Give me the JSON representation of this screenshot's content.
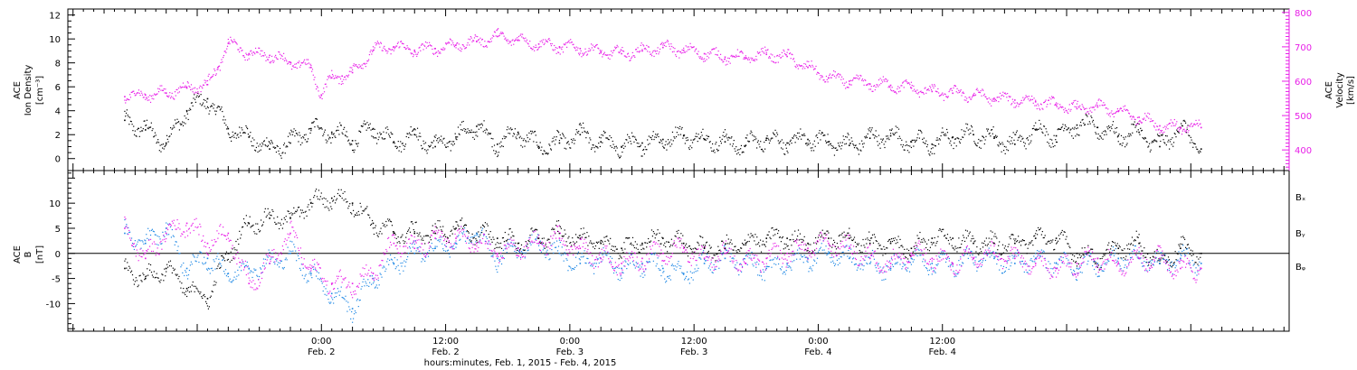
{
  "colors": {
    "density": "#000000",
    "velocity": "#e81ee8",
    "bx": "#000000",
    "by": "#1e88e5",
    "bz": "#e81ee8"
  },
  "chart_data": [
    {
      "type": "scatter",
      "panel": "top",
      "ylabel": [
        "ACE",
        "Ion Density",
        "[cm⁻³]"
      ],
      "ylabel_right": [
        "ACE",
        "Velocity",
        "[km/s]"
      ],
      "ylim": [
        -1,
        12.5
      ],
      "yticks": [
        0,
        2,
        4,
        6,
        8,
        10,
        12
      ],
      "ylim_right": [
        340,
        810
      ],
      "yticks_right": [
        400,
        500,
        600,
        700,
        800
      ],
      "series": [
        {
          "key": "density",
          "axis": "left",
          "x": [
            -19,
            -17,
            -15,
            -13,
            -11,
            -9,
            -7,
            -5,
            -3,
            -1,
            1,
            3,
            5,
            7,
            9,
            11,
            13,
            15,
            17,
            19,
            21,
            23,
            25,
            27,
            29,
            31,
            33,
            35,
            37,
            39,
            41,
            43,
            45,
            47,
            49,
            51,
            53,
            55,
            57,
            59,
            61,
            63,
            65,
            67,
            69,
            71,
            73,
            75,
            77,
            79,
            81,
            83,
            85
          ],
          "values": [
            3.2,
            2.4,
            1.3,
            4.0,
            5.0,
            2.5,
            1.8,
            0.8,
            1.3,
            2.5,
            2.2,
            1.5,
            2.5,
            1.4,
            2.0,
            1.0,
            1.8,
            2.7,
            1.2,
            2.2,
            1.0,
            1.3,
            2.0,
            1.4,
            1.0,
            1.3,
            1.6,
            1.9,
            1.6,
            1.4,
            1.1,
            1.7,
            1.3,
            1.6,
            1.4,
            1.1,
            1.7,
            1.9,
            1.4,
            1.2,
            1.8,
            2.0,
            1.7,
            1.2,
            2.4,
            1.9,
            2.8,
            2.6,
            1.9,
            2.2,
            1.0,
            2.6,
            0.8
          ]
        },
        {
          "key": "velocity",
          "axis": "right",
          "x": [
            -19,
            -17,
            -15,
            -13,
            -11,
            -10,
            -9,
            -7,
            -5,
            -3,
            -1,
            0,
            1,
            2,
            3,
            5,
            7,
            9,
            11,
            13,
            15,
            17,
            19,
            21,
            23,
            25,
            27,
            29,
            31,
            33,
            35,
            37,
            39,
            41,
            43,
            45,
            47,
            49,
            51,
            53,
            55,
            57,
            59,
            61,
            63,
            65,
            67,
            69,
            71,
            73,
            75,
            77,
            79,
            81,
            83,
            85
          ],
          "values": [
            555,
            560,
            565,
            580,
            590,
            640,
            710,
            680,
            675,
            655,
            640,
            560,
            610,
            615,
            625,
            690,
            700,
            690,
            695,
            705,
            715,
            730,
            720,
            708,
            700,
            695,
            685,
            680,
            688,
            698,
            690,
            680,
            670,
            668,
            678,
            672,
            640,
            610,
            600,
            592,
            588,
            580,
            570,
            565,
            560,
            550,
            545,
            540,
            530,
            520,
            525,
            512,
            495,
            470,
            465,
            465
          ]
        }
      ]
    },
    {
      "type": "scatter",
      "panel": "bottom",
      "ylabel": [
        "ACE",
        "B",
        "[nT]"
      ],
      "ylim": [
        -15.5,
        16.5
      ],
      "yticks": [
        -10,
        -5,
        0,
        5,
        10
      ],
      "zero_line": true,
      "legend": [
        "Bₓ",
        "Bᵧ",
        "Bᵩ"
      ],
      "series": [
        {
          "key": "bx",
          "x": [
            -19,
            -17,
            -15,
            -13,
            -11,
            -9,
            -7,
            -5,
            -3,
            -1,
            1,
            3,
            5,
            7,
            9,
            11,
            13,
            15,
            17,
            19,
            21,
            23,
            25,
            27,
            29,
            31,
            33,
            35,
            37,
            39,
            41,
            43,
            45,
            47,
            49,
            51,
            53,
            55,
            57,
            59,
            61,
            63,
            65,
            67,
            69,
            71,
            73,
            75,
            77,
            79,
            81,
            83,
            85
          ],
          "values": [
            -3,
            -5,
            -3,
            -7,
            -9,
            0,
            6,
            7,
            7,
            10,
            11,
            10,
            6,
            4,
            4,
            4,
            5,
            4,
            3,
            2,
            3,
            4,
            3,
            2,
            1,
            2,
            3,
            2,
            1,
            1,
            2,
            3,
            3,
            2,
            3,
            3,
            2,
            2,
            1,
            3,
            3,
            2,
            2,
            2,
            3,
            3,
            0,
            -1,
            1,
            2,
            -2,
            1,
            0
          ]
        },
        {
          "key": "by",
          "x": [
            -19,
            -17,
            -15,
            -13,
            -11,
            -9,
            -7,
            -5,
            -3,
            -1,
            1,
            3,
            5,
            7,
            9,
            11,
            13,
            15,
            17,
            19,
            21,
            23,
            25,
            27,
            29,
            31,
            33,
            35,
            37,
            39,
            41,
            43,
            45,
            47,
            49,
            51,
            53,
            55,
            57,
            59,
            61,
            63,
            65,
            67,
            69,
            71,
            73,
            75,
            77,
            79,
            81,
            83,
            85
          ],
          "values": [
            4,
            2,
            5,
            -3,
            -1,
            -4,
            -3,
            -2,
            0,
            -4,
            -8,
            -11,
            -5,
            -2,
            0,
            1,
            2,
            4,
            -1,
            1,
            2,
            0,
            -2,
            -1,
            -3,
            -2,
            -3,
            -4,
            -2,
            -1,
            -2,
            -3,
            -2,
            -1,
            0,
            -1,
            -2,
            -3,
            -1,
            -2,
            -2,
            -1,
            -1,
            -2,
            -1,
            -2,
            -3,
            -2,
            -1,
            -1,
            -2,
            -1,
            -2
          ]
        },
        {
          "key": "bz",
          "x": [
            -19,
            -17,
            -15,
            -13,
            -11,
            -9,
            -7,
            -5,
            -3,
            -1,
            1,
            3,
            5,
            7,
            9,
            11,
            13,
            15,
            17,
            19,
            21,
            23,
            25,
            27,
            29,
            31,
            33,
            35,
            37,
            39,
            41,
            43,
            45,
            47,
            49,
            51,
            53,
            55,
            57,
            59,
            61,
            63,
            65,
            67,
            69,
            71,
            73,
            75,
            77,
            79,
            81,
            83,
            85
          ],
          "values": [
            5,
            -1,
            4,
            6,
            2,
            4,
            -6,
            -2,
            4,
            -3,
            -6,
            -6,
            -4,
            2,
            1,
            3,
            3,
            2,
            0,
            1,
            2,
            3,
            1,
            -1,
            -2,
            -1,
            0,
            1,
            -1,
            0,
            -2,
            -1,
            0,
            1,
            2,
            1,
            -1,
            -2,
            0,
            -1,
            -2,
            -1,
            0,
            -1,
            -2,
            -3,
            -2,
            -1,
            -2,
            -1,
            -1,
            -3,
            -3
          ]
        }
      ]
    }
  ],
  "xaxis": {
    "xlim": [
      -24.5,
      93.5
    ],
    "major_ticks": [
      {
        "x": 0,
        "time": "0:00",
        "date": "Feb. 2"
      },
      {
        "x": 12,
        "time": "12:00",
        "date": "Feb. 2"
      },
      {
        "x": 24,
        "time": "0:00",
        "date": "Feb. 3"
      },
      {
        "x": 36,
        "time": "12:00",
        "date": "Feb. 3"
      },
      {
        "x": 48,
        "time": "0:00",
        "date": "Feb. 4"
      },
      {
        "x": 60,
        "time": "12:00",
        "date": "Feb. 4"
      }
    ],
    "xlabel": "hours:minutes, Feb.  1, 2015 - Feb.  4, 2015"
  }
}
